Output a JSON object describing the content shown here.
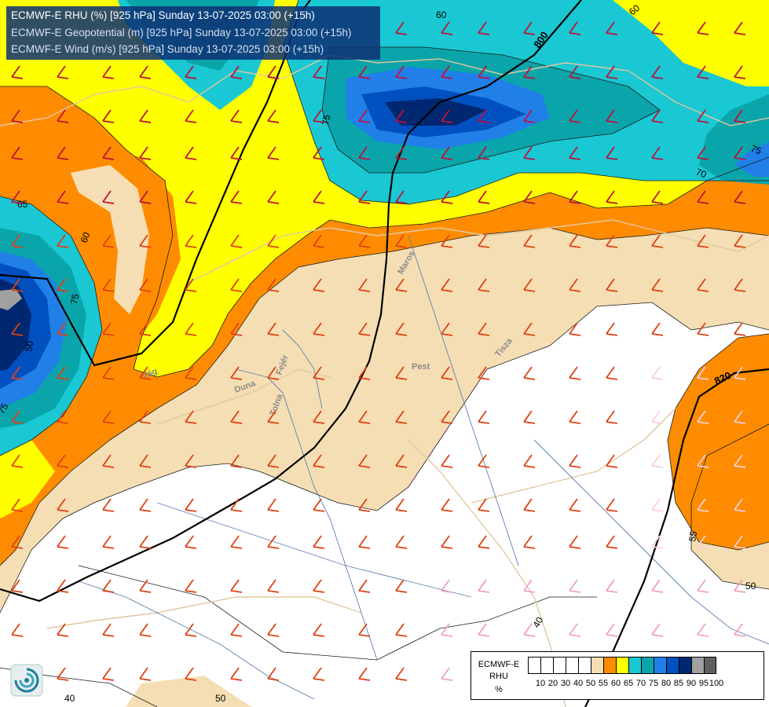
{
  "header": {
    "line1": "ECMWF-E RHU (%) [925 hPa] Sunday 13-07-2025 03:00 (+15h)",
    "line2": "ECMWF-E Geopotential (m) [925 hPa] Sunday 13-07-2025 03:00 (+15h)",
    "line3": "ECMWF-E Wind (m/s) [925 hPa] Sunday 13-07-2025 03:00 (+15h)"
  },
  "legend": {
    "title1": "ECMWF-E",
    "title2": "RHU",
    "title3": "%",
    "swatches": [
      "#ffffff",
      "#ffffff",
      "#ffffff",
      "#ffffff",
      "#ffffff",
      "#f5deb3",
      "#ff8c00",
      "#ffff00",
      "#19c8d2",
      "#0aa5aa",
      "#2080e8",
      "#0050c0",
      "#002870",
      "#a0a0a0",
      "#606060"
    ],
    "ticks": [
      "10",
      "20",
      "30",
      "40",
      "50",
      "55",
      "60",
      "65",
      "70",
      "75",
      "80",
      "85",
      "90",
      "95",
      "100"
    ]
  },
  "colors": {
    "rh_lt55": "#ffffff",
    "rh_55_60": "#f5deb3",
    "rh_60_65": "#ff8c00",
    "rh_65_70": "#ffff00",
    "rh_70_75": "#19c8d2",
    "rh_75_80": "#0aa5aa",
    "rh_80_85": "#2080e8",
    "rh_85_90": "#0050c0",
    "rh_90_95": "#002870",
    "rh_95_100": "#a0a0a0"
  },
  "geopotential_labels": [
    "800",
    "820"
  ],
  "contour_labels": [
    "60",
    "60",
    "65",
    "60",
    "75",
    "75",
    "70",
    "75",
    "50",
    "75",
    "55",
    "50",
    "40",
    "40",
    "50"
  ],
  "place_labels": [
    "Pest",
    "Tolna",
    "Duna",
    "Tisza",
    "Vág",
    "Maros",
    "Fejér"
  ],
  "logo": "ecmwf-logo-icon"
}
